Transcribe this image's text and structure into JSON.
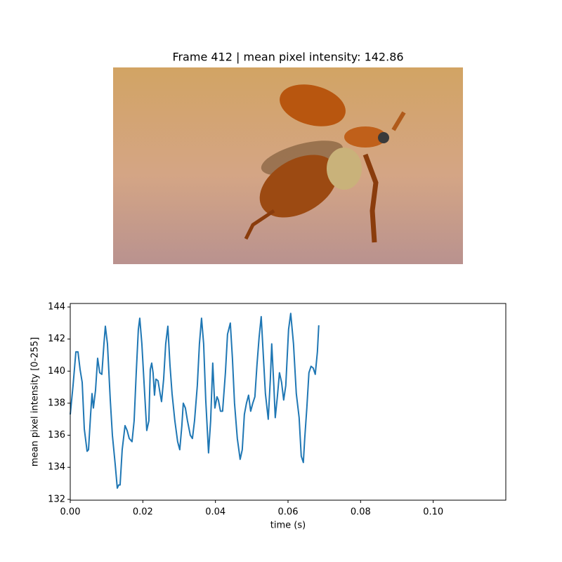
{
  "chart_data": [
    {
      "type": "image",
      "title": "Frame 412 | mean pixel intensity: 142.86"
    },
    {
      "type": "line",
      "xlabel": "time (s)",
      "ylabel": "mean pixel intensity [0-255]",
      "xlim": [
        0,
        0.12
      ],
      "ylim": [
        131.95,
        144.22
      ],
      "xticks": [
        {
          "value": 0,
          "label": "0.00"
        },
        {
          "value": 0.02,
          "label": "0.02"
        },
        {
          "value": 0.04,
          "label": "0.04"
        },
        {
          "value": 0.06,
          "label": "0.06"
        },
        {
          "value": 0.08,
          "label": "0.08"
        },
        {
          "value": 0.1,
          "label": "0.10"
        }
      ],
      "yticks": [
        132,
        134,
        136,
        138,
        140,
        142,
        144
      ],
      "series": [
        {
          "color": "#1f77b4",
          "x": [
            0,
            0.00077,
            0.00155,
            0.00213,
            0.00271,
            0.00329,
            0.00387,
            0.00464,
            0.00503,
            0.00561,
            0.006,
            0.00638,
            0.00696,
            0.00754,
            0.00812,
            0.0087,
            0.00928,
            0.00967,
            0.01025,
            0.01103,
            0.01161,
            0.01238,
            0.01296,
            0.01335,
            0.01373,
            0.01431,
            0.01509,
            0.01567,
            0.01625,
            0.01702,
            0.0176,
            0.01818,
            0.01876,
            0.01915,
            0.01973,
            0.0205,
            0.02108,
            0.02166,
            0.02205,
            0.02244,
            0.02282,
            0.02321,
            0.0236,
            0.02418,
            0.02476,
            0.02515,
            0.02573,
            0.0263,
            0.02689,
            0.02747,
            0.02805,
            0.02882,
            0.02959,
            0.03017,
            0.03075,
            0.03114,
            0.03172,
            0.0323,
            0.03308,
            0.03366,
            0.03424,
            0.03501,
            0.03559,
            0.03617,
            0.03675,
            0.03733,
            0.0381,
            0.03868,
            0.03926,
            0.03985,
            0.04043,
            0.04081,
            0.04139,
            0.04197,
            0.04275,
            0.04333,
            0.0441,
            0.04468,
            0.04526,
            0.04603,
            0.04681,
            0.04739,
            0.04797,
            0.04855,
            0.04913,
            0.04971,
            0.05029,
            0.05087,
            0.05145,
            0.05203,
            0.05261,
            0.05319,
            0.05377,
            0.05455,
            0.05513,
            0.05551,
            0.05609,
            0.05648,
            0.05706,
            0.05764,
            0.05822,
            0.0588,
            0.05938,
            0.06015,
            0.06074,
            0.06151,
            0.06228,
            0.06306,
            0.06364,
            0.06422,
            0.0646,
            0.06518,
            0.06576,
            0.06634,
            0.06692,
            0.0675,
            0.06809,
            0.06847
          ],
          "values": [
            137.3,
            139.1,
            141.2,
            141.2,
            140.1,
            139.3,
            136.4,
            135.0,
            135.1,
            137.3,
            138.6,
            137.7,
            138.8,
            140.8,
            139.9,
            139.8,
            141.7,
            142.8,
            141.7,
            138.2,
            136.0,
            134.2,
            132.7,
            132.9,
            132.9,
            135.1,
            136.6,
            136.3,
            135.8,
            135.6,
            136.9,
            139.9,
            142.6,
            143.3,
            141.7,
            138.6,
            136.3,
            136.9,
            140.1,
            140.5,
            139.9,
            138.5,
            139.5,
            139.4,
            138.6,
            138.1,
            139.5,
            141.7,
            142.8,
            140.4,
            138.6,
            136.9,
            135.6,
            135.1,
            136.6,
            138.0,
            137.7,
            136.9,
            136.0,
            135.8,
            136.9,
            139.1,
            141.7,
            143.3,
            141.7,
            138.2,
            134.9,
            136.9,
            140.5,
            137.7,
            138.4,
            138.2,
            137.5,
            137.5,
            139.9,
            142.3,
            143.0,
            140.8,
            138.0,
            135.8,
            134.5,
            135.1,
            137.3,
            138.0,
            138.5,
            137.5,
            138.0,
            138.4,
            140.4,
            142.1,
            143.4,
            141.0,
            138.6,
            137.0,
            139.5,
            141.7,
            139.1,
            137.1,
            138.4,
            139.9,
            139.3,
            138.2,
            139.1,
            142.6,
            143.6,
            141.7,
            138.6,
            137.1,
            134.7,
            134.3,
            135.8,
            137.7,
            139.9,
            140.3,
            140.2,
            139.8,
            141.2,
            142.86
          ]
        }
      ]
    }
  ]
}
